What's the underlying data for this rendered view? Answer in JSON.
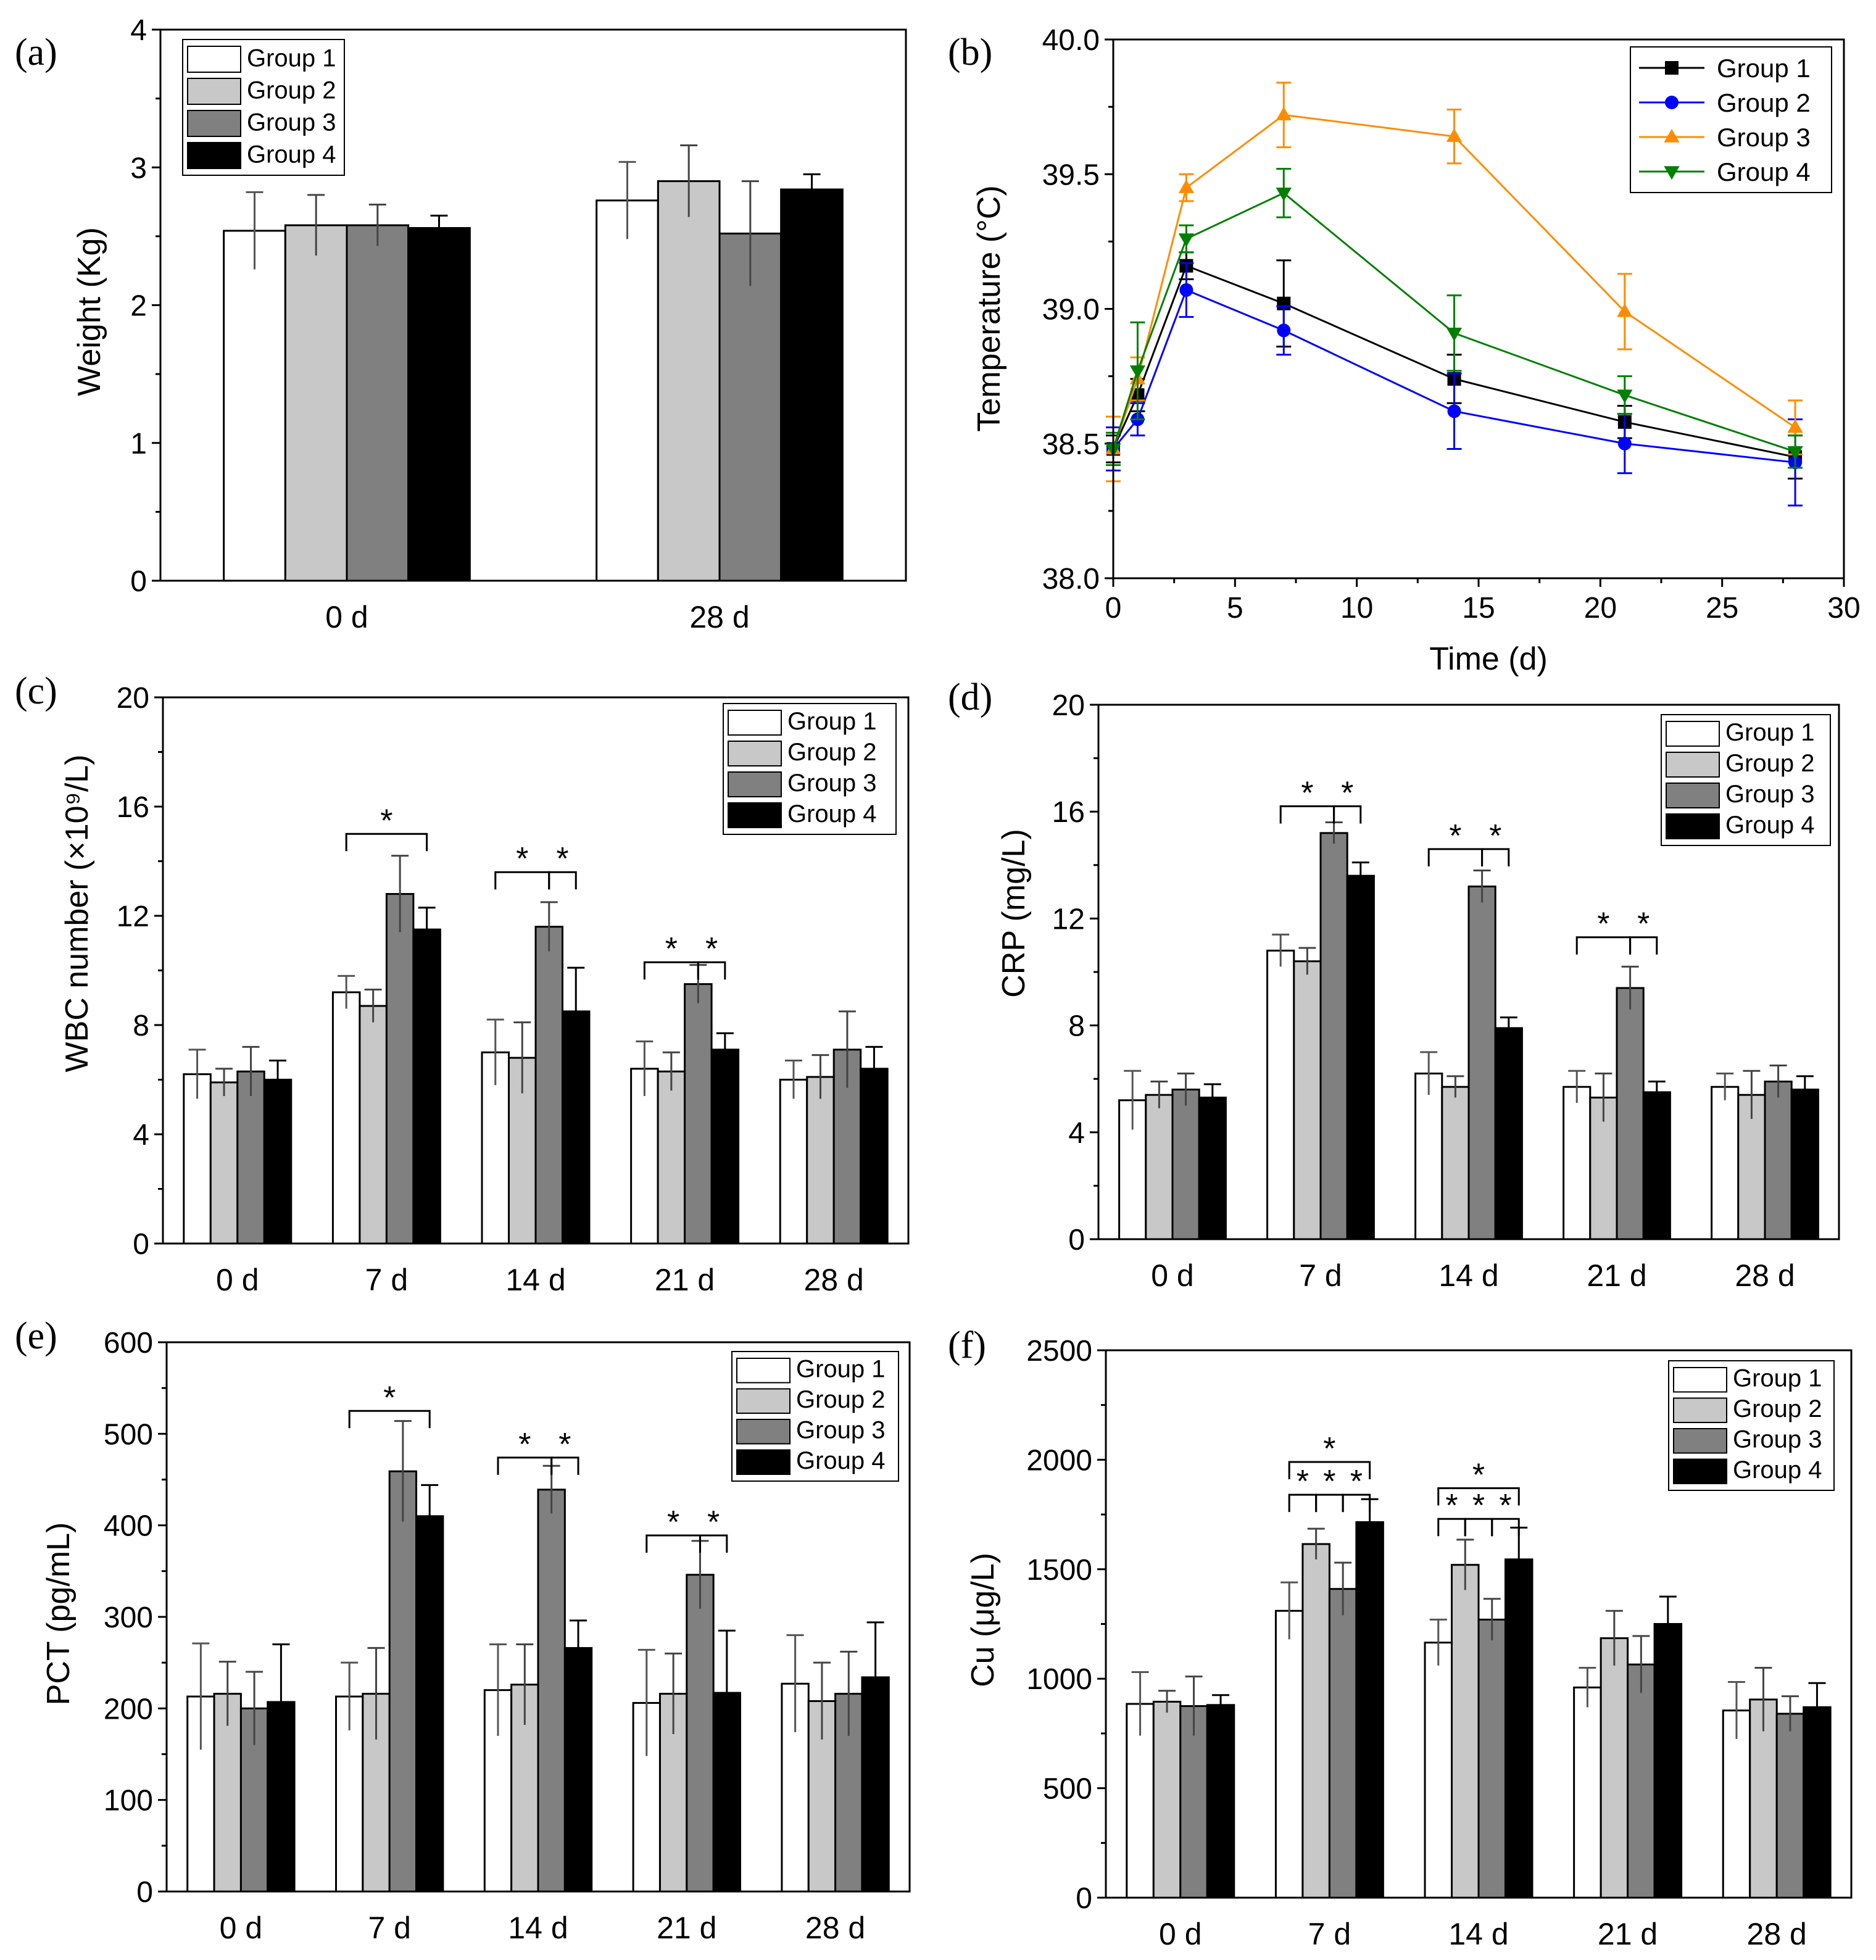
{
  "chart_data": [
    {
      "panel": "(a)",
      "type": "bar",
      "title": "",
      "xlabel": "",
      "ylabel": "Weight (Kg)",
      "ylim": [
        0,
        4
      ],
      "yticks": [
        0,
        1,
        2,
        3,
        4
      ],
      "categories": [
        "0 d",
        "28 d"
      ],
      "legend_position": "top-left",
      "series": [
        {
          "name": "Group 1",
          "color": "#ffffff",
          "values": [
            2.54,
            2.76
          ],
          "errors": [
            0.28,
            0.28
          ]
        },
        {
          "name": "Group 2",
          "color": "#c8c8c8",
          "values": [
            2.58,
            2.9
          ],
          "errors": [
            0.22,
            0.26
          ]
        },
        {
          "name": "Group 3",
          "color": "#808080",
          "values": [
            2.58,
            2.52
          ],
          "errors": [
            0.15,
            0.38
          ]
        },
        {
          "name": "Group 4",
          "color": "#000000",
          "values": [
            2.56,
            2.84
          ],
          "errors": [
            0.09,
            0.11
          ]
        }
      ],
      "significance": []
    },
    {
      "panel": "(b)",
      "type": "line",
      "title": "",
      "xlabel": "Time (d)",
      "ylabel": "Temperature (°C)",
      "xlim": [
        0,
        30
      ],
      "ylim": [
        38.0,
        40.0
      ],
      "xticks": [
        0,
        5,
        10,
        15,
        20,
        25,
        30
      ],
      "yticks": [
        38.0,
        38.5,
        39.0,
        39.5,
        40.0
      ],
      "x": [
        0,
        1,
        3,
        7,
        14,
        21,
        28
      ],
      "legend_position": "top-right",
      "series": [
        {
          "name": "Group 1",
          "color": "#000000",
          "marker": "square",
          "values": [
            38.48,
            38.68,
            39.16,
            39.02,
            38.74,
            38.58,
            38.45
          ],
          "errors": [
            0.05,
            0.06,
            0.05,
            0.16,
            0.09,
            0.06,
            0.08
          ]
        },
        {
          "name": "Group 2",
          "color": "#0000ff",
          "marker": "circle",
          "values": [
            38.48,
            38.59,
            39.07,
            38.92,
            38.62,
            38.5,
            38.43
          ],
          "errors": [
            0.08,
            0.06,
            0.1,
            0.09,
            0.14,
            0.11,
            0.16
          ]
        },
        {
          "name": "Group 3",
          "color": "#ff8c00",
          "marker": "triangle-up",
          "values": [
            38.48,
            38.74,
            39.45,
            39.72,
            39.64,
            38.99,
            38.56
          ],
          "errors": [
            0.12,
            0.08,
            0.05,
            0.12,
            0.1,
            0.14,
            0.1
          ]
        },
        {
          "name": "Group 4",
          "color": "#008000",
          "marker": "triangle-down",
          "values": [
            38.48,
            38.77,
            39.26,
            39.43,
            38.91,
            38.68,
            38.47
          ],
          "errors": [
            0.06,
            0.18,
            0.05,
            0.09,
            0.14,
            0.07,
            0.06
          ]
        }
      ]
    },
    {
      "panel": "(c)",
      "type": "bar",
      "title": "",
      "xlabel": "",
      "ylabel": "WBC number (×10⁹/L)",
      "ylim": [
        0,
        20
      ],
      "yticks": [
        0,
        4,
        8,
        12,
        16,
        20
      ],
      "categories": [
        "0 d",
        "7 d",
        "14 d",
        "21 d",
        "28 d"
      ],
      "legend_position": "top-right",
      "series": [
        {
          "name": "Group 1",
          "color": "#ffffff",
          "values": [
            6.2,
            9.2,
            7.0,
            6.4,
            6.0
          ],
          "errors": [
            0.9,
            0.6,
            1.2,
            1.0,
            0.7
          ]
        },
        {
          "name": "Group 2",
          "color": "#c8c8c8",
          "values": [
            5.9,
            8.7,
            6.8,
            6.3,
            6.1
          ],
          "errors": [
            0.5,
            0.6,
            1.3,
            0.7,
            0.8
          ]
        },
        {
          "name": "Group 3",
          "color": "#808080",
          "values": [
            6.3,
            12.8,
            11.6,
            9.5,
            7.1
          ],
          "errors": [
            0.9,
            1.4,
            0.9,
            0.7,
            1.4
          ]
        },
        {
          "name": "Group 4",
          "color": "#000000",
          "values": [
            6.0,
            11.5,
            8.5,
            7.1,
            6.4
          ],
          "errors": [
            0.7,
            0.8,
            1.6,
            0.6,
            0.8
          ]
        }
      ],
      "significance": [
        {
          "category": 1,
          "from": 0,
          "to": 3,
          "label": "*",
          "y": 15.0
        },
        {
          "category": 2,
          "from": 0,
          "to": 2,
          "label": "*",
          "y": 13.6
        },
        {
          "category": 2,
          "from": 2,
          "to": 3,
          "label": "*",
          "y": 13.6
        },
        {
          "category": 3,
          "from": 0,
          "to": 2,
          "label": "*",
          "y": 10.3
        },
        {
          "category": 3,
          "from": 2,
          "to": 3,
          "label": "*",
          "y": 10.3
        }
      ]
    },
    {
      "panel": "(d)",
      "type": "bar",
      "title": "",
      "xlabel": "",
      "ylabel": "CRP (mg/L)",
      "ylim": [
        0,
        20
      ],
      "yticks": [
        0,
        4,
        8,
        12,
        16,
        20
      ],
      "categories": [
        "0 d",
        "7 d",
        "14 d",
        "21 d",
        "28 d"
      ],
      "legend_position": "top-right",
      "series": [
        {
          "name": "Group 1",
          "color": "#ffffff",
          "values": [
            5.2,
            10.8,
            6.2,
            5.7,
            5.7
          ],
          "errors": [
            1.1,
            0.6,
            0.8,
            0.6,
            0.5
          ]
        },
        {
          "name": "Group 2",
          "color": "#c8c8c8",
          "values": [
            5.4,
            10.4,
            5.7,
            5.3,
            5.4
          ],
          "errors": [
            0.5,
            0.5,
            0.4,
            0.9,
            0.9
          ]
        },
        {
          "name": "Group 3",
          "color": "#808080",
          "values": [
            5.6,
            15.2,
            13.2,
            9.4,
            5.9
          ],
          "errors": [
            0.6,
            0.4,
            0.6,
            0.8,
            0.6
          ]
        },
        {
          "name": "Group 4",
          "color": "#000000",
          "values": [
            5.3,
            13.6,
            7.9,
            5.5,
            5.6
          ],
          "errors": [
            0.5,
            0.5,
            0.4,
            0.4,
            0.5
          ]
        }
      ],
      "significance": [
        {
          "category": 1,
          "from": 0,
          "to": 2,
          "label": "*",
          "y": 16.2
        },
        {
          "category": 1,
          "from": 2,
          "to": 3,
          "label": "*",
          "y": 16.2
        },
        {
          "category": 2,
          "from": 0,
          "to": 2,
          "label": "*",
          "y": 14.6
        },
        {
          "category": 2,
          "from": 2,
          "to": 3,
          "label": "*",
          "y": 14.6
        },
        {
          "category": 3,
          "from": 0,
          "to": 2,
          "label": "*",
          "y": 11.3
        },
        {
          "category": 3,
          "from": 2,
          "to": 3,
          "label": "*",
          "y": 11.3
        }
      ]
    },
    {
      "panel": "(e)",
      "type": "bar",
      "title": "",
      "xlabel": "",
      "ylabel": "PCT (pg/mL)",
      "ylim": [
        0,
        600
      ],
      "yticks": [
        0,
        100,
        200,
        300,
        400,
        500,
        600
      ],
      "categories": [
        "0 d",
        "7 d",
        "14 d",
        "21 d",
        "28 d"
      ],
      "legend_position": "top-right",
      "series": [
        {
          "name": "Group 1",
          "color": "#ffffff",
          "values": [
            213,
            213,
            220,
            206,
            227
          ],
          "errors": [
            58,
            37,
            50,
            58,
            53
          ]
        },
        {
          "name": "Group 2",
          "color": "#c8c8c8",
          "values": [
            216,
            216,
            226,
            216,
            208
          ],
          "errors": [
            35,
            50,
            44,
            44,
            42
          ]
        },
        {
          "name": "Group 3",
          "color": "#808080",
          "values": [
            200,
            459,
            439,
            346,
            216
          ],
          "errors": [
            40,
            55,
            26,
            37,
            46
          ]
        },
        {
          "name": "Group 4",
          "color": "#000000",
          "values": [
            207,
            410,
            266,
            217,
            234
          ],
          "errors": [
            63,
            34,
            30,
            68,
            60
          ]
        }
      ],
      "significance": [
        {
          "category": 1,
          "from": 0,
          "to": 3,
          "label": "*",
          "y": 525
        },
        {
          "category": 2,
          "from": 0,
          "to": 2,
          "label": "*",
          "y": 474
        },
        {
          "category": 2,
          "from": 2,
          "to": 3,
          "label": "*",
          "y": 474
        },
        {
          "category": 3,
          "from": 0,
          "to": 2,
          "label": "*",
          "y": 389
        },
        {
          "category": 3,
          "from": 2,
          "to": 3,
          "label": "*",
          "y": 389
        }
      ]
    },
    {
      "panel": "(f)",
      "type": "bar",
      "title": "",
      "xlabel": "",
      "ylabel": "Cu (μg/L)",
      "ylim": [
        0,
        2500
      ],
      "yticks": [
        0,
        500,
        1000,
        1500,
        2000,
        2500
      ],
      "categories": [
        "0 d",
        "7 d",
        "14 d",
        "21 d",
        "28 d"
      ],
      "legend_position": "top-right",
      "series": [
        {
          "name": "Group 1",
          "color": "#ffffff",
          "values": [
            885,
            1310,
            1165,
            960,
            855
          ],
          "errors": [
            145,
            130,
            105,
            90,
            130
          ]
        },
        {
          "name": "Group 2",
          "color": "#c8c8c8",
          "values": [
            895,
            1615,
            1520,
            1185,
            905
          ],
          "errors": [
            50,
            70,
            115,
            125,
            145
          ]
        },
        {
          "name": "Group 3",
          "color": "#808080",
          "values": [
            875,
            1410,
            1270,
            1065,
            840
          ],
          "errors": [
            135,
            120,
            95,
            130,
            80
          ]
        },
        {
          "name": "Group 4",
          "color": "#000000",
          "values": [
            880,
            1715,
            1545,
            1250,
            870
          ],
          "errors": [
            45,
            105,
            145,
            125,
            110
          ]
        }
      ],
      "significance": [
        {
          "category": 1,
          "from": 0,
          "to": 3,
          "label": "*",
          "y": 1990
        },
        {
          "category": 1,
          "from": 0,
          "to": 1,
          "label": "*",
          "y": 1840
        },
        {
          "category": 1,
          "from": 1,
          "to": 2,
          "label": "*",
          "y": 1840
        },
        {
          "category": 1,
          "from": 2,
          "to": 3,
          "label": "*",
          "y": 1840
        },
        {
          "category": 2,
          "from": 0,
          "to": 3,
          "label": "*",
          "y": 1870
        },
        {
          "category": 2,
          "from": 0,
          "to": 1,
          "label": "*",
          "y": 1730
        },
        {
          "category": 2,
          "from": 1,
          "to": 2,
          "label": "*",
          "y": 1730
        },
        {
          "category": 2,
          "from": 2,
          "to": 3,
          "label": "*",
          "y": 1730
        }
      ]
    }
  ]
}
